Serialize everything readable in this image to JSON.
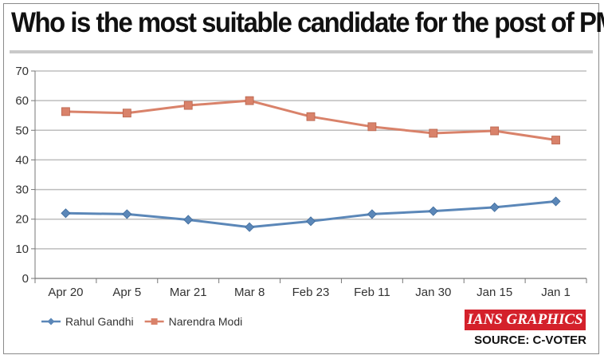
{
  "title": "Who is the most suitable candidate for the post of PM?",
  "brand": "IANS GRAPHICS",
  "source": "SOURCE: C-VOTER",
  "colors": {
    "gandhi": "#5b87b8",
    "modi": "#d9826a",
    "brand_bg": "#d4212b",
    "grid": "#bdbdbd"
  },
  "chart_data": {
    "type": "line",
    "title": "Who is the most suitable candidate for the post of PM?",
    "categories": [
      "Apr 20",
      "Apr 5",
      "Mar 21",
      "Mar 8",
      "Feb 23",
      "Feb 11",
      "Jan 30",
      "Jan 15",
      "Jan 1"
    ],
    "ylim": [
      0,
      70
    ],
    "yticks": [
      0,
      10,
      20,
      30,
      40,
      50,
      60,
      70
    ],
    "grid": true,
    "legend_position": "bottom-left",
    "series": [
      {
        "name": "Rahul Gandhi",
        "marker": "diamond",
        "color": "#5b87b8",
        "values": [
          22,
          21.7,
          19.8,
          17.3,
          19.3,
          21.7,
          22.7,
          24,
          26
        ]
      },
      {
        "name": "Narendra Modi",
        "marker": "square",
        "color": "#d9826a",
        "values": [
          56.3,
          55.8,
          58.4,
          60,
          54.6,
          51.2,
          49,
          49.8,
          46.7
        ]
      }
    ]
  }
}
